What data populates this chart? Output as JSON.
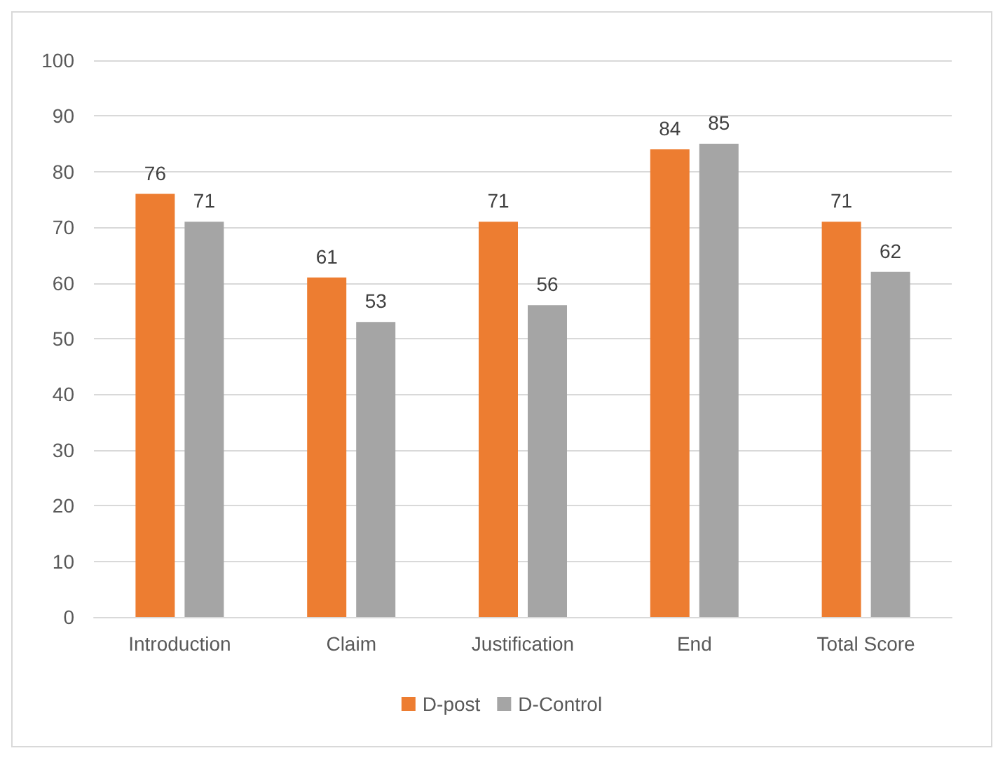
{
  "chart_data": {
    "type": "bar",
    "categories": [
      "Introduction",
      "Claim",
      "Justification",
      "End",
      "Total Score"
    ],
    "series": [
      {
        "name": "D-post",
        "color": "#ed7d31",
        "values": [
          76,
          61,
          71,
          84,
          71
        ]
      },
      {
        "name": "D-Control",
        "color": "#a5a5a5",
        "values": [
          71,
          53,
          56,
          85,
          62
        ]
      }
    ],
    "ylim": [
      0,
      100
    ],
    "yticks": [
      0,
      10,
      20,
      30,
      40,
      50,
      60,
      70,
      80,
      90,
      100
    ],
    "grid": "y",
    "legend": "bottom",
    "data_labels": true
  }
}
